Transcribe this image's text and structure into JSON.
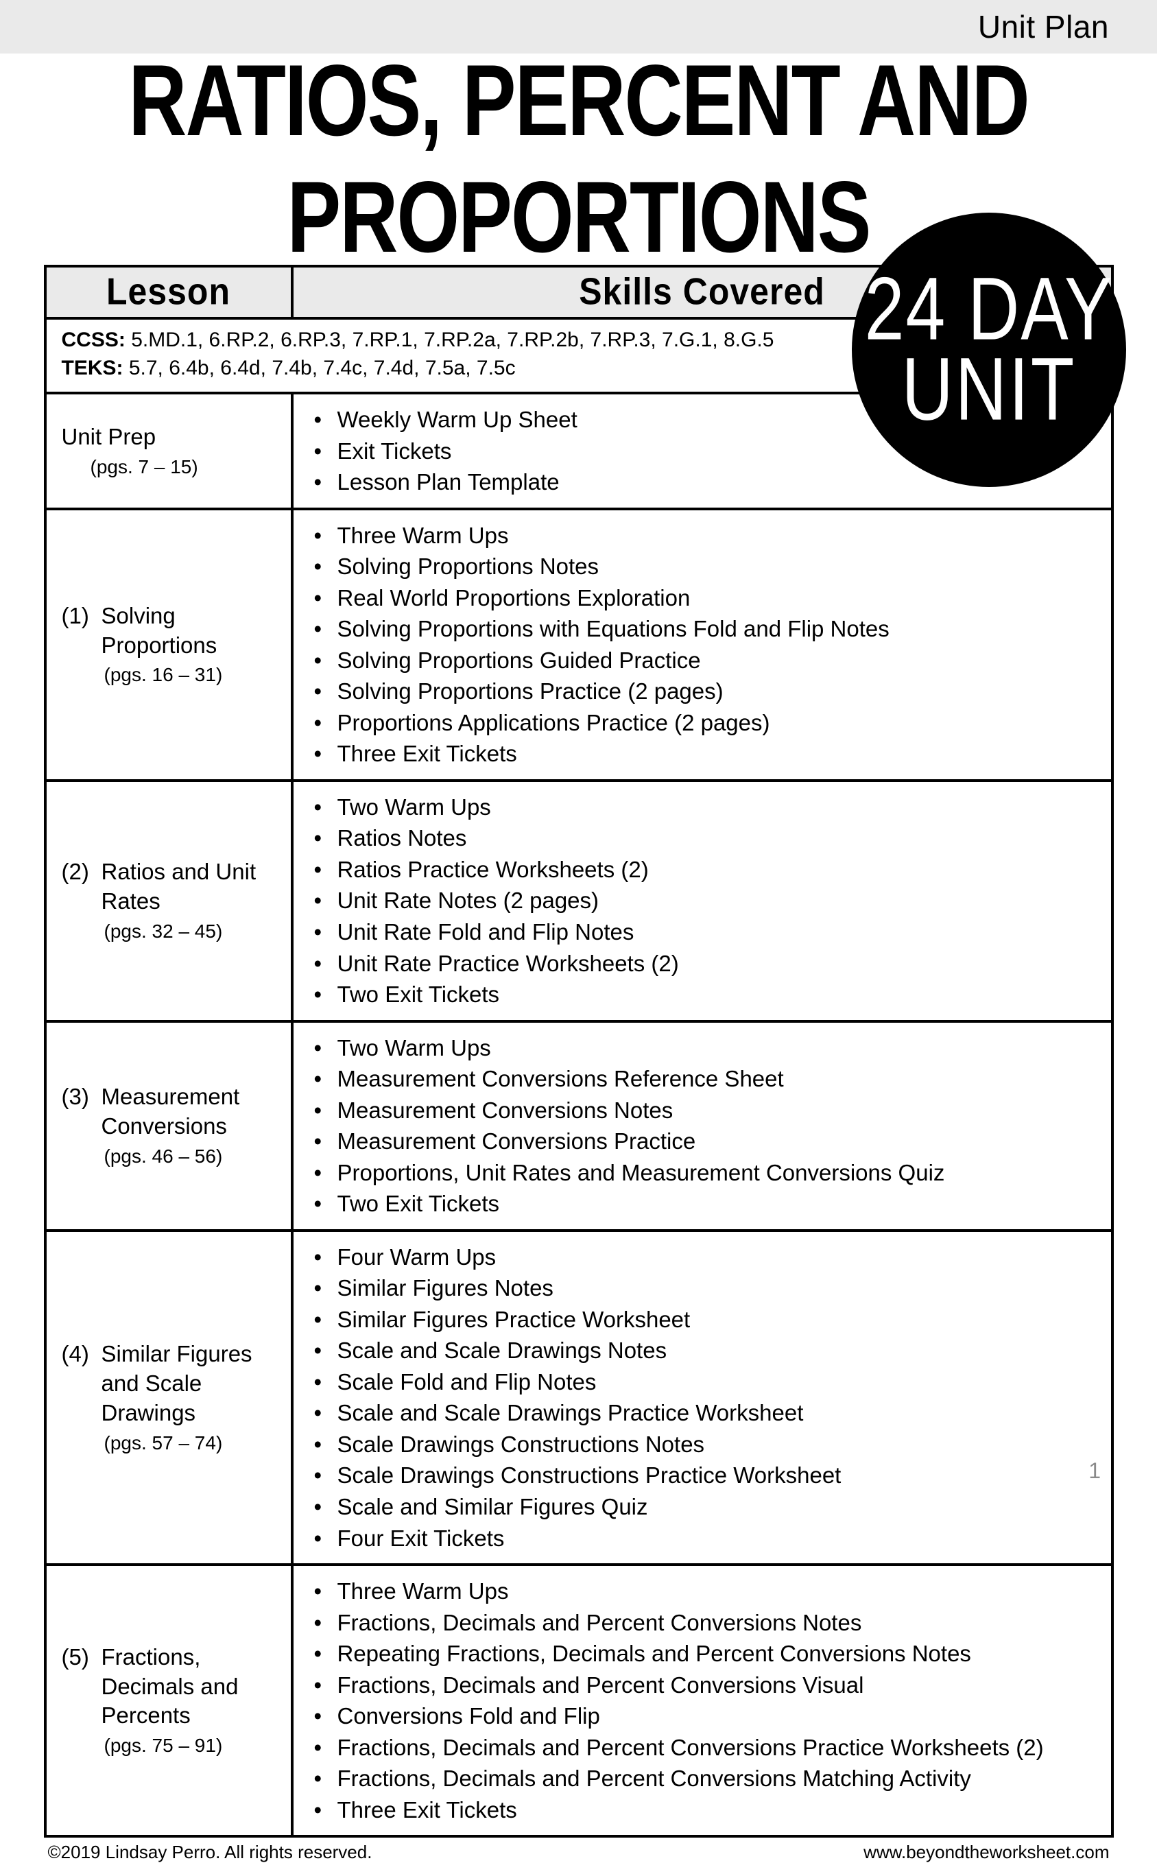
{
  "header_label": "Unit Plan",
  "main_title": "RATIOS, PERCENT AND PROPORTIONS",
  "table_headers": {
    "lesson": "Lesson",
    "skills": "Skills Covered"
  },
  "standards": {
    "ccss_label": "CCSS:",
    "ccss_value": "5.MD.1, 6.RP.2, 6.RP.3, 7.RP.1, 7.RP.2a, 7.RP.2b, 7.RP.3, 7.G.1, 8.G.5",
    "teks_label": "TEKS:",
    "teks_value": "5.7, 6.4b, 6.4d, 7.4b, 7.4c, 7.4d, 7.5a, 7.5c"
  },
  "badge": {
    "line1": "24 DAY",
    "line2": "UNIT"
  },
  "lessons": [
    {
      "num": "",
      "title": "Unit Prep",
      "pages": "(pgs. 7 – 15)",
      "skills": [
        "Weekly Warm Up Sheet",
        "Exit Tickets",
        "Lesson Plan Template"
      ]
    },
    {
      "num": "(1)",
      "title": "Solving Proportions",
      "pages": "(pgs. 16 – 31)",
      "skills": [
        "Three Warm Ups",
        "Solving Proportions Notes",
        "Real World Proportions Exploration",
        "Solving Proportions with Equations Fold and Flip Notes",
        "Solving Proportions Guided Practice",
        "Solving Proportions Practice (2 pages)",
        "Proportions Applications Practice (2 pages)",
        "Three Exit Tickets"
      ]
    },
    {
      "num": "(2)",
      "title": "Ratios and Unit Rates",
      "pages": "(pgs. 32 – 45)",
      "skills": [
        "Two Warm Ups",
        "Ratios Notes",
        "Ratios Practice Worksheets (2)",
        "Unit Rate Notes (2 pages)",
        "Unit Rate Fold and Flip Notes",
        "Unit Rate Practice Worksheets (2)",
        "Two Exit Tickets"
      ]
    },
    {
      "num": "(3)",
      "title": "Measurement Conversions",
      "pages": "(pgs. 46 – 56)",
      "skills": [
        "Two Warm Ups",
        "Measurement Conversions Reference Sheet",
        "Measurement Conversions Notes",
        "Measurement Conversions Practice",
        "Proportions, Unit Rates and Measurement Conversions Quiz",
        "Two Exit Tickets"
      ]
    },
    {
      "num": "(4)",
      "title": "Similar Figures and Scale Drawings",
      "pages": "(pgs. 57 – 74)",
      "skills": [
        "Four Warm Ups",
        "Similar Figures Notes",
        "Similar Figures Practice Worksheet",
        "Scale and Scale Drawings Notes",
        "Scale Fold and Flip Notes",
        "Scale and Scale Drawings Practice Worksheet",
        "Scale Drawings Constructions Notes",
        "Scale Drawings Constructions Practice Worksheet",
        "Scale and Similar Figures Quiz",
        "Four Exit Tickets"
      ]
    },
    {
      "num": "(5)",
      "title": "Fractions, Decimals and Percents",
      "pages": "(pgs. 75 – 91)",
      "skills": [
        "Three Warm Ups",
        "Fractions, Decimals and Percent Conversions Notes",
        "Repeating Fractions, Decimals and Percent Conversions Notes",
        "Fractions, Decimals and Percent Conversions Visual",
        "Conversions Fold and Flip",
        "Fractions, Decimals and Percent Conversions Practice Worksheets (2)",
        "Fractions, Decimals and Percent Conversions Matching Activity",
        "Three Exit Tickets"
      ]
    }
  ],
  "footer": {
    "copyright": "©2019 Lindsay Perro. All rights reserved.",
    "website": "www.beyondtheworksheet.com"
  },
  "page_number": "1"
}
